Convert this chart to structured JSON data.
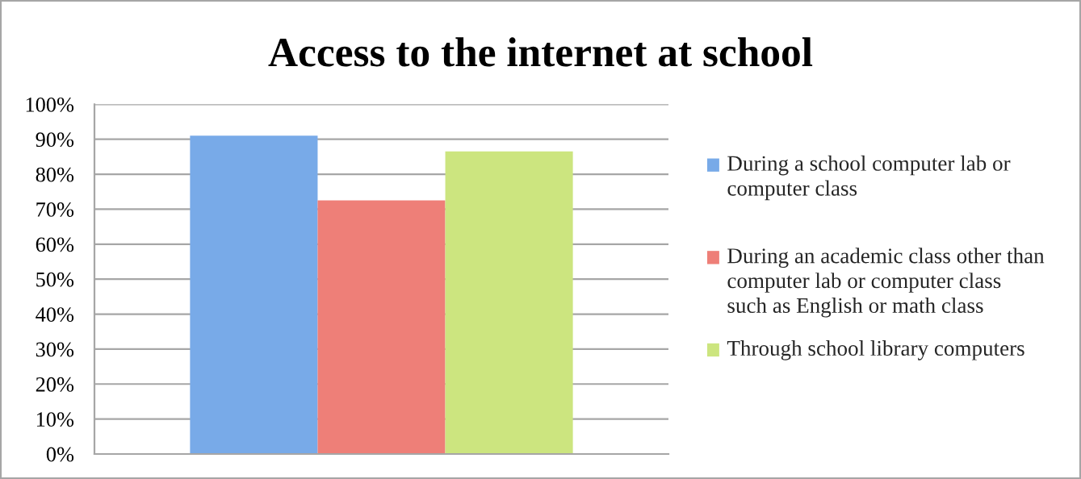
{
  "chart_data": {
    "type": "bar",
    "title": "Access to the internet at school",
    "categories": [
      null
    ],
    "series": [
      {
        "name": "During a school computer lab or computer class",
        "color": "#78aae8",
        "values": [
          91
        ]
      },
      {
        "name": "During an academic class other than computer lab or computer class such as English or math class",
        "color": "#ee7f78",
        "values": [
          72.5
        ]
      },
      {
        "name": "Through school library computers",
        "color": "#cce57f",
        "values": [
          86.5
        ]
      }
    ],
    "ylim": [
      0,
      100
    ],
    "yticks": [
      {
        "value": 0,
        "label": "0%"
      },
      {
        "value": 10,
        "label": "10%"
      },
      {
        "value": 20,
        "label": "20%"
      },
      {
        "value": 30,
        "label": "30%"
      },
      {
        "value": 40,
        "label": "40%"
      },
      {
        "value": 50,
        "label": "50%"
      },
      {
        "value": 60,
        "label": "60%"
      },
      {
        "value": 70,
        "label": "70%"
      },
      {
        "value": 80,
        "label": "80%"
      },
      {
        "value": 90,
        "label": "90%"
      },
      {
        "value": 100,
        "label": "100%"
      }
    ],
    "grid": "y",
    "legend": "right",
    "tick_labels": "y"
  }
}
